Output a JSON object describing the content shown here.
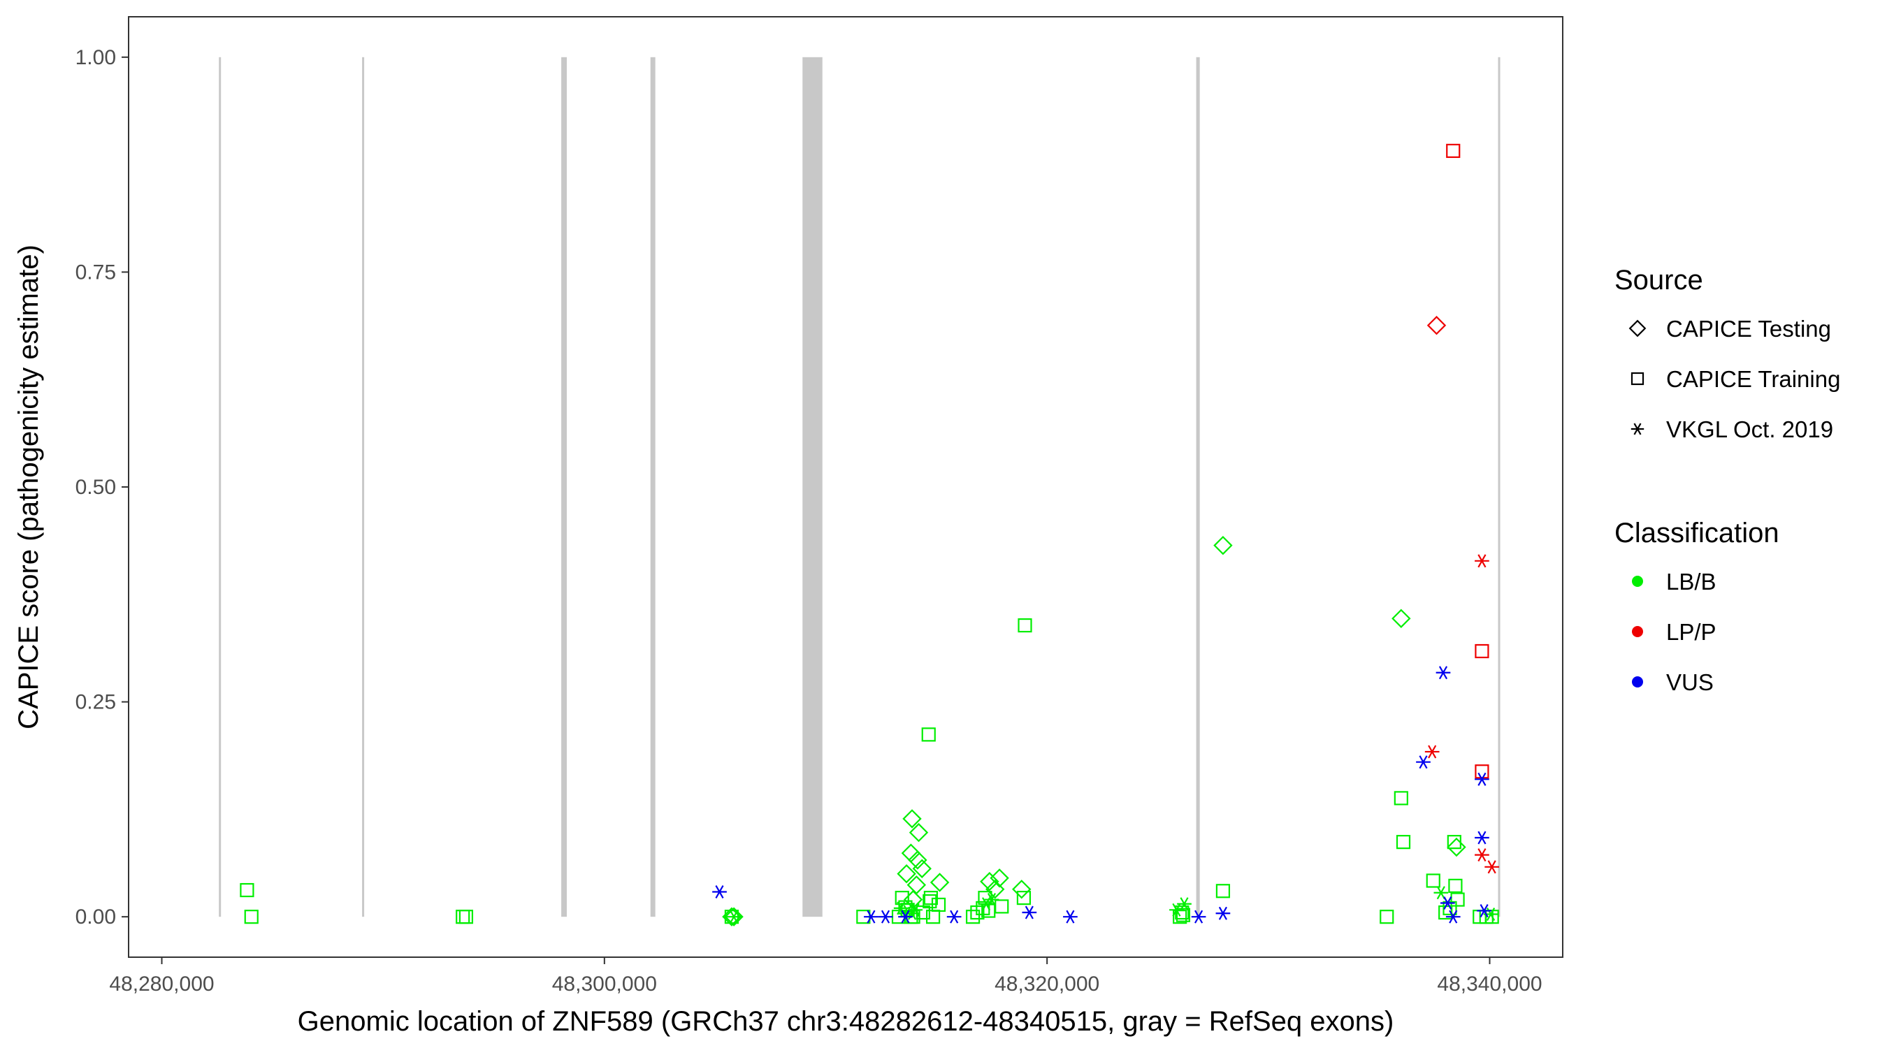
{
  "chart_data": {
    "type": "scatter",
    "xlabel": "Genomic location of ZNF589 (GRCh37 chr3:48282612-48340515, gray = RefSeq exons)",
    "ylabel": "CAPICE score (pathogenicity estimate)",
    "xlim": [
      48278500,
      48343300
    ],
    "ylim": [
      -0.047,
      1.047
    ],
    "x_ticks": [
      {
        "value": 48280000,
        "label": "48,280,000"
      },
      {
        "value": 48300000,
        "label": "48,300,000"
      },
      {
        "value": 48320000,
        "label": "48,320,000"
      },
      {
        "value": 48340000,
        "label": "48,340,000"
      }
    ],
    "y_ticks": [
      {
        "value": 0,
        "label": "0.00"
      },
      {
        "value": 0.25,
        "label": "0.25"
      },
      {
        "value": 0.5,
        "label": "0.50"
      },
      {
        "value": 0.75,
        "label": "0.75"
      },
      {
        "value": 1.0,
        "label": "1.00"
      }
    ],
    "grid": false,
    "exons": [
      {
        "start": 48282580,
        "end": 48282660
      },
      {
        "start": 48289050,
        "end": 48289130
      },
      {
        "start": 48298050,
        "end": 48298300
      },
      {
        "start": 48302080,
        "end": 48302300
      },
      {
        "start": 48308950,
        "end": 48309850
      },
      {
        "start": 48326740,
        "end": 48326900
      },
      {
        "start": 48340380,
        "end": 48340460
      }
    ],
    "legend": {
      "position": "right",
      "source_title": "Source",
      "source_entries": [
        {
          "label": "CAPICE Testing",
          "shape": "diamond"
        },
        {
          "label": "CAPICE Training",
          "shape": "square"
        },
        {
          "label": "VKGL Oct. 2019",
          "shape": "asterisk"
        }
      ],
      "class_title": "Classification",
      "class_entries": [
        {
          "label": "LB/B",
          "color": "#00ee00"
        },
        {
          "label": "LP/P",
          "color": "#ee0000"
        },
        {
          "label": "VUS",
          "color": "#0000ee"
        }
      ]
    },
    "colors": {
      "LB/B": "#00ee00",
      "LP/P": "#ee0000",
      "VUS": "#0000ee"
    },
    "series": [
      {
        "source": "CAPICE Training",
        "classification": "LB/B",
        "points": [
          [
            48283850,
            0.031
          ],
          [
            48284050,
            0.0
          ],
          [
            48293600,
            0.0
          ],
          [
            48293750,
            0.0
          ],
          [
            48305750,
            0.0
          ],
          [
            48311700,
            0.0
          ],
          [
            48313300,
            0.0
          ],
          [
            48313450,
            0.022
          ],
          [
            48313600,
            0.011
          ],
          [
            48313700,
            0.008
          ],
          [
            48313850,
            0.0
          ],
          [
            48313950,
            0.0
          ],
          [
            48314400,
            0.005
          ],
          [
            48314650,
            0.212
          ],
          [
            48314700,
            0.018
          ],
          [
            48314750,
            0.022
          ],
          [
            48314850,
            0.0
          ],
          [
            48315100,
            0.014
          ],
          [
            48316650,
            0.0
          ],
          [
            48316850,
            0.005
          ],
          [
            48317100,
            0.01
          ],
          [
            48317200,
            0.022
          ],
          [
            48317350,
            0.007
          ],
          [
            48317950,
            0.012
          ],
          [
            48318950,
            0.022
          ],
          [
            48319000,
            0.339
          ],
          [
            48326000,
            0.0
          ],
          [
            48326100,
            0.005
          ],
          [
            48326150,
            0.002
          ],
          [
            48327950,
            0.03
          ],
          [
            48335350,
            0.0
          ],
          [
            48336000,
            0.138
          ],
          [
            48336100,
            0.087
          ],
          [
            48337450,
            0.042
          ],
          [
            48338000,
            0.005
          ],
          [
            48338200,
            0.01
          ],
          [
            48338400,
            0.087
          ],
          [
            48338450,
            0.036
          ],
          [
            48338550,
            0.02
          ],
          [
            48339550,
            0.0
          ],
          [
            48339850,
            0.0
          ],
          [
            48340100,
            0.0
          ]
        ]
      },
      {
        "source": "CAPICE Testing",
        "classification": "LB/B",
        "points": [
          [
            48305750,
            0.0
          ],
          [
            48305850,
            0.0
          ],
          [
            48313650,
            0.05
          ],
          [
            48313850,
            0.074
          ],
          [
            48313900,
            0.114
          ],
          [
            48313950,
            0.02
          ],
          [
            48314100,
            0.037
          ],
          [
            48314150,
            0.066
          ],
          [
            48314200,
            0.098
          ],
          [
            48314350,
            0.056
          ],
          [
            48315150,
            0.04
          ],
          [
            48317400,
            0.041
          ],
          [
            48317650,
            0.032
          ],
          [
            48317850,
            0.045
          ],
          [
            48318850,
            0.032
          ],
          [
            48327950,
            0.432
          ],
          [
            48336000,
            0.347
          ],
          [
            48338500,
            0.081
          ]
        ]
      },
      {
        "source": "VKGL Oct. 2019",
        "classification": "LB/B",
        "points": [
          [
            48305850,
            0.0
          ],
          [
            48313400,
            0.01
          ],
          [
            48313700,
            0.006
          ],
          [
            48313900,
            0.004
          ],
          [
            48314050,
            0.008
          ],
          [
            48317250,
            0.015
          ],
          [
            48317500,
            0.02
          ],
          [
            48325850,
            0.008
          ],
          [
            48326200,
            0.015
          ],
          [
            48337800,
            0.028
          ],
          [
            48340050,
            0.003
          ]
        ]
      },
      {
        "source": "CAPICE Training",
        "classification": "LP/P",
        "points": [
          [
            48338350,
            0.891
          ],
          [
            48339650,
            0.309
          ],
          [
            48339650,
            0.169
          ]
        ]
      },
      {
        "source": "CAPICE Testing",
        "classification": "LP/P",
        "points": [
          [
            48337600,
            0.688
          ]
        ]
      },
      {
        "source": "VKGL Oct. 2019",
        "classification": "LP/P",
        "points": [
          [
            48339650,
            0.414
          ],
          [
            48337400,
            0.192
          ],
          [
            48339650,
            0.072
          ],
          [
            48340100,
            0.058
          ]
        ]
      },
      {
        "source": "VKGL Oct. 2019",
        "classification": "VUS",
        "points": [
          [
            48305200,
            0.029
          ],
          [
            48312050,
            0.0
          ],
          [
            48312700,
            0.0
          ],
          [
            48313600,
            0.0
          ],
          [
            48315800,
            0.0
          ],
          [
            48319200,
            0.005
          ],
          [
            48321050,
            0.0
          ],
          [
            48326850,
            0.0
          ],
          [
            48327950,
            0.004
          ],
          [
            48337000,
            0.18
          ],
          [
            48337900,
            0.284
          ],
          [
            48338100,
            0.016
          ],
          [
            48338350,
            0.0
          ],
          [
            48339650,
            0.16
          ],
          [
            48339650,
            0.092
          ],
          [
            48339750,
            0.007
          ]
        ]
      }
    ]
  }
}
